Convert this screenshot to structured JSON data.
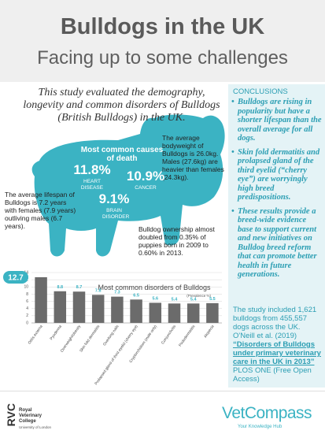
{
  "header": {
    "title": "Bulldogs in the UK",
    "subtitle": "Facing up to some challenges"
  },
  "intro": "This study evaluated the demography, longevity and common disorders of Bulldogs (British Bulldogs) in the UK.",
  "causes_of_death": {
    "title": "Most common causes of death",
    "items": [
      {
        "value": "11.8%",
        "label": "HEART DISEASE"
      },
      {
        "value": "10.9%",
        "label": "CANCER"
      },
      {
        "value": "9.1%",
        "label": "BRAIN DISORDER"
      }
    ]
  },
  "facts": {
    "bodyweight": "The average bodyweight of Bulldogs is 26.0kg. Males (27.6kg) are heavier than females (24.3kg).",
    "lifespan": "The average lifespan of Bulldogs is 7.2 years with females (7.9 years) outliving males (6.7 years).",
    "ownership": "Bulldog ownership almost doubled from 0.35% of puppies born in 2009 to 0.60% in 2013."
  },
  "conclusions": {
    "heading": "CONCLUSIONS",
    "bullets": [
      "Bulldogs are rising in popularity but have a shorter lifespan than the overall average for all dogs.",
      "Skin fold dermatitis and prolapsed gland of the third eyelid (“cherry eye”) are worryingly high breed predispositions.",
      "These results provide a breed-wide evidence base to support current and new initiatives on Bulldog breed reform that can promote better health in future generations."
    ]
  },
  "study": {
    "text": "The study included 1,621 bulldogs from 455,557 dogs across the UK. O'Neill et al. (2019)",
    "link": "“Disorders of Bulldogs under primary veterinary care in the UK in 2013”",
    "source": "PLOS ONE (Free Open Access)"
  },
  "footer": {
    "rvc_logo": "RVC",
    "rvc_name": "Royal Veterinary College",
    "rvc_sub": "University of London",
    "brand": "VetCompass",
    "tagline": "Your Knowledge Hub"
  },
  "chart_data": {
    "type": "bar",
    "title": "Most common disorders of Bulldogs",
    "y_label": "(Prevalence %)",
    "categories": [
      "Otitis externa",
      "Pyoderma",
      "Overweight/obesity",
      "Skin fold dermatitis",
      "Overlong nails",
      "Prolapsed gland of third eyelid (cherry eye)",
      "Cryptorchidism (male only)",
      "Conjunctivitis",
      "Pododermatitis",
      "Alopecia"
    ],
    "values": [
      12.7,
      8.8,
      8.7,
      7.8,
      7.3,
      6.5,
      5.6,
      5.4,
      5.4,
      5.5
    ],
    "color": "#6b6b6b",
    "highlight_color": "#3bb3c3",
    "ylim": [
      0,
      14
    ],
    "yticks": [
      0,
      2,
      4,
      6,
      8,
      10,
      12,
      14
    ],
    "grid": true
  }
}
